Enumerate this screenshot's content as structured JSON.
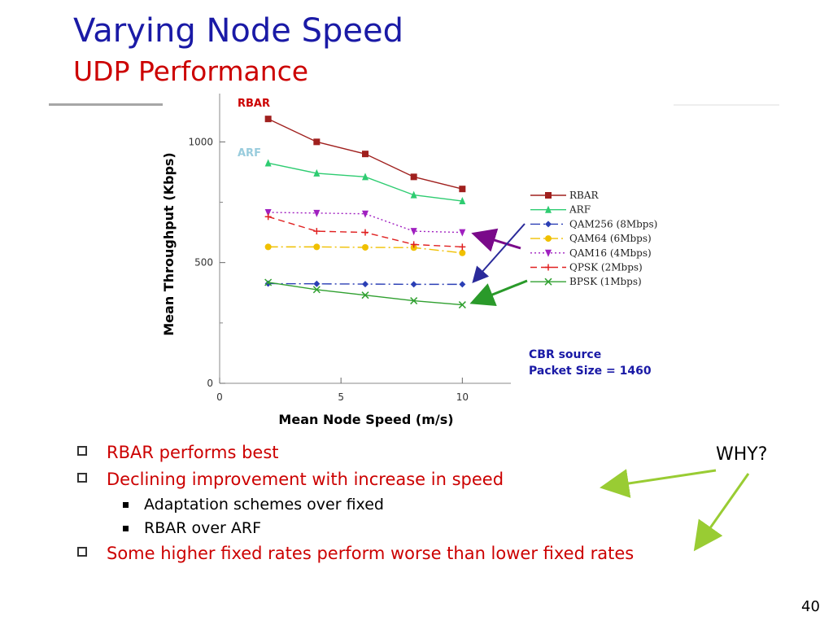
{
  "slide": {
    "title": "Varying Node Speed",
    "subtitle": "UDP Performance",
    "page_number": "40"
  },
  "annotations": {
    "rbar_label": "RBAR",
    "arf_label": "ARF",
    "cbr_line1": "CBR source",
    "cbr_line2": "Packet Size = 1460",
    "why": "WHY?"
  },
  "bullets": [
    {
      "text": "RBAR performs best",
      "level": 1
    },
    {
      "text": "Declining improvement with increase in speed",
      "level": 1
    },
    {
      "text": "Adaptation schemes over fixed",
      "level": 2
    },
    {
      "text": "RBAR over ARF",
      "level": 2
    },
    {
      "text": "Some higher fixed rates perform worse than lower fixed rates",
      "level": 1
    }
  ],
  "colors": {
    "title": "#1a1aa6",
    "subtitle": "#cc0000",
    "arrow_purple": "#7a0a8a",
    "arrow_navy": "#2a2a9a",
    "arrow_green": "#2a9a2a",
    "arrow_lime": "#99cc33"
  },
  "chart_data": {
    "type": "line",
    "xlabel": "Mean Node Speed (m/s)",
    "ylabel": "Mean Throughput (Kbps)",
    "xlim": [
      0,
      12
    ],
    "ylim": [
      0,
      1200
    ],
    "xticks": [
      0,
      5,
      10
    ],
    "yticks": [
      0,
      500,
      1000
    ],
    "x": [
      2,
      4,
      6,
      8,
      10
    ],
    "legend_position": "right",
    "series": [
      {
        "name": "RBAR",
        "values": [
          1095,
          1000,
          950,
          855,
          805
        ],
        "color": "#a0201e",
        "marker": "square",
        "dash": ""
      },
      {
        "name": "ARF",
        "values": [
          912,
          870,
          855,
          780,
          755
        ],
        "color": "#2ecc71",
        "marker": "triangle",
        "dash": ""
      },
      {
        "name": "QAM256 (8Mbps)",
        "values": [
          413,
          412,
          411,
          410,
          410
        ],
        "color": "#2b3fb5",
        "marker": "diamond",
        "dash": "12,4,2,4"
      },
      {
        "name": "QAM64 (6Mbps)",
        "values": [
          565,
          565,
          563,
          562,
          540
        ],
        "color": "#f0c000",
        "marker": "circle",
        "dash": "12,4,2,4"
      },
      {
        "name": "QAM16 (4Mbps)",
        "values": [
          708,
          705,
          702,
          630,
          625
        ],
        "color": "#a020c0",
        "marker": "tri-down",
        "dash": "2,3"
      },
      {
        "name": "QPSK (2Mbps)",
        "values": [
          690,
          630,
          625,
          575,
          565
        ],
        "color": "#e02020",
        "marker": "plus",
        "dash": "8,5"
      },
      {
        "name": "BPSK (1Mbps)",
        "values": [
          418,
          388,
          365,
          342,
          325
        ],
        "color": "#30a030",
        "marker": "x",
        "dash": ""
      }
    ]
  }
}
